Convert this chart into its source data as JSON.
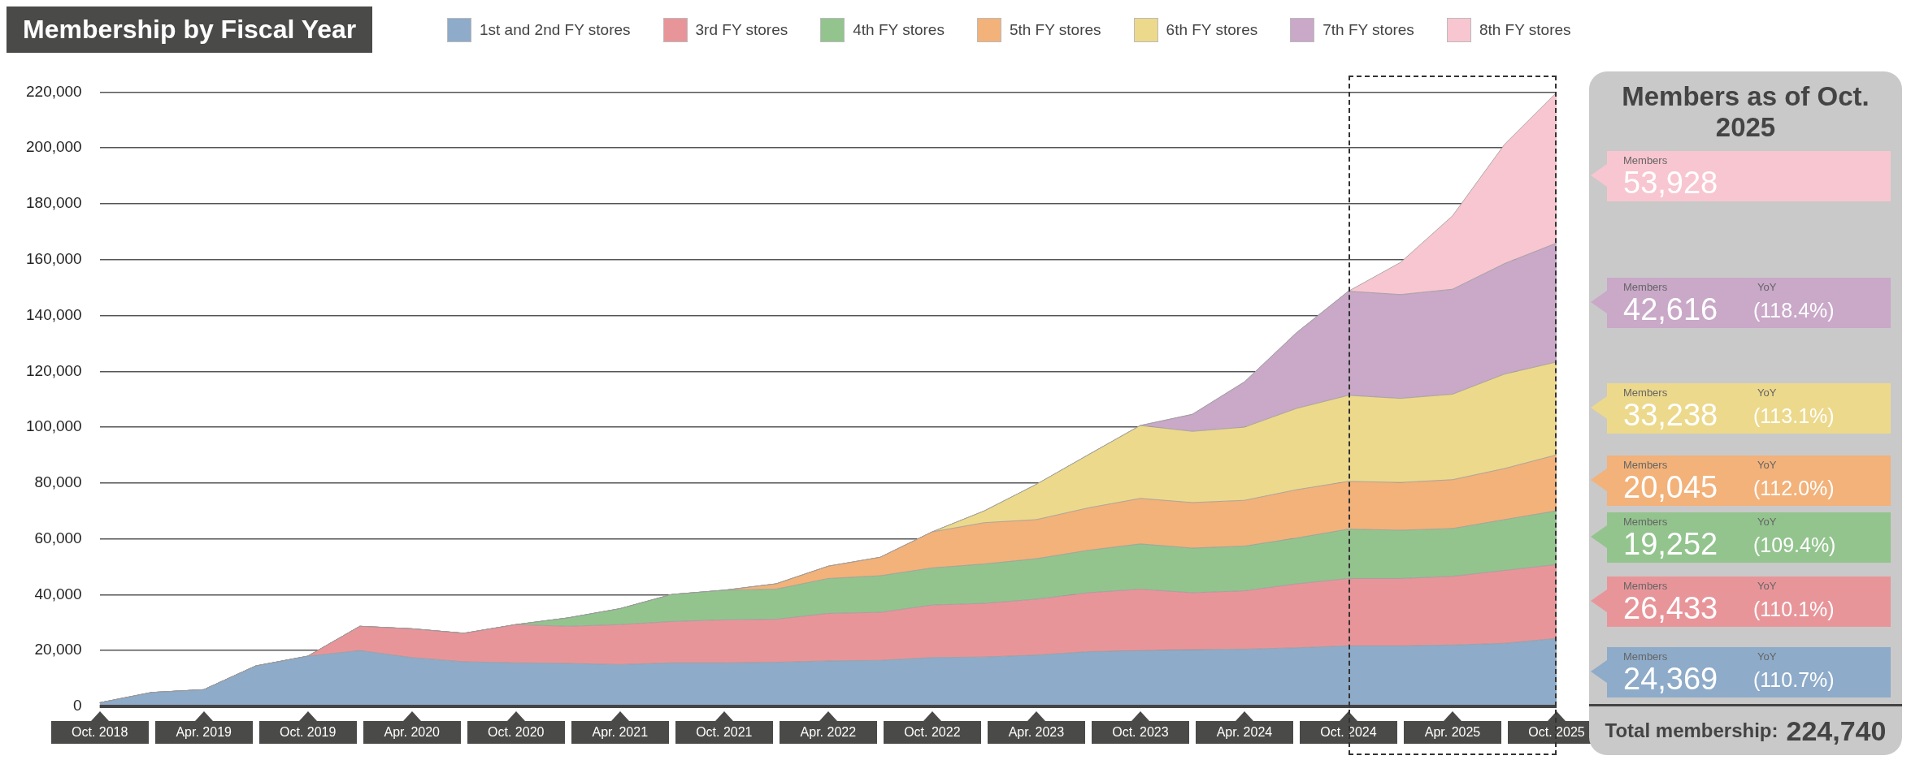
{
  "chart_data": {
    "type": "area",
    "stacked": true,
    "title": "Membership by Fiscal Year",
    "categories": [
      "Oct. 2018",
      null,
      "Apr. 2019",
      null,
      "Oct. 2019",
      null,
      "Apr. 2020",
      null,
      "Oct. 2020",
      null,
      "Apr. 2021",
      null,
      "Oct. 2021",
      null,
      "Apr. 2022",
      null,
      "Oct. 2022",
      null,
      "Apr. 2023",
      null,
      "Oct. 2023",
      null,
      "Apr. 2024",
      null,
      "Oct. 2024",
      null,
      "Apr. 2025",
      null,
      "Oct. 2025"
    ],
    "series": [
      {
        "name": "1st and 2nd FY stores",
        "color": "#8eabc9",
        "values": [
          1300,
          5000,
          6000,
          14500,
          18000,
          20000,
          17500,
          16000,
          15600,
          15400,
          15000,
          15600,
          15600,
          15800,
          16300,
          16500,
          17500,
          17700,
          18400,
          19600,
          20000,
          20300,
          20500,
          21000,
          21700,
          21700,
          22000,
          22600,
          24369
        ]
      },
      {
        "name": "3rd FY stores",
        "color": "#e8959a",
        "values": [
          0,
          0,
          0,
          0,
          0,
          8700,
          10300,
          10200,
          13700,
          13300,
          14300,
          14800,
          15400,
          15400,
          17000,
          17200,
          18800,
          19200,
          20000,
          21100,
          22000,
          20400,
          20900,
          22900,
          24100,
          24100,
          24600,
          26100,
          26433
        ]
      },
      {
        "name": "4th FY stores",
        "color": "#93c48e",
        "values": [
          0,
          0,
          0,
          0,
          0,
          0,
          0,
          0,
          0,
          3000,
          5700,
          9700,
          10600,
          10800,
          12500,
          13100,
          13300,
          14100,
          14500,
          15200,
          16200,
          16000,
          16000,
          16400,
          17700,
          17300,
          17100,
          18200,
          19252
        ]
      },
      {
        "name": "5th FY stores",
        "color": "#f2b27a",
        "values": [
          0,
          0,
          0,
          0,
          0,
          0,
          0,
          0,
          0,
          0,
          0,
          0,
          0,
          1900,
          4400,
          6600,
          12900,
          14800,
          14000,
          15200,
          16300,
          16300,
          16400,
          17300,
          17100,
          17100,
          17500,
          18300,
          20045
        ]
      },
      {
        "name": "6th FY stores",
        "color": "#ecd98c",
        "values": [
          0,
          0,
          0,
          0,
          0,
          0,
          0,
          0,
          0,
          0,
          0,
          0,
          0,
          0,
          0,
          0,
          0,
          4200,
          12600,
          19000,
          26100,
          25500,
          26200,
          29100,
          30800,
          30100,
          30600,
          33800,
          33238
        ]
      },
      {
        "name": "7th FY stores",
        "color": "#c9a8c8",
        "values": [
          0,
          0,
          0,
          0,
          0,
          0,
          0,
          0,
          0,
          0,
          0,
          0,
          0,
          0,
          0,
          0,
          0,
          0,
          0,
          0,
          0,
          6100,
          16200,
          27100,
          37300,
          37200,
          37600,
          39600,
          42616
        ]
      },
      {
        "name": "8th FY stores",
        "color": "#f8c6d0",
        "values": [
          0,
          0,
          0,
          0,
          0,
          0,
          0,
          0,
          0,
          0,
          0,
          0,
          0,
          0,
          0,
          0,
          0,
          0,
          0,
          0,
          0,
          0,
          0,
          0,
          0,
          11500,
          26300,
          42700,
          53928
        ]
      }
    ],
    "ylim": [
      0,
      220000
    ],
    "yticks": [
      {
        "value": 0,
        "label": "0"
      },
      {
        "value": 20000,
        "label": "20,000"
      },
      {
        "value": 40000,
        "label": "40,000"
      },
      {
        "value": 60000,
        "label": "60,000"
      },
      {
        "value": 80000,
        "label": "80,000"
      },
      {
        "value": 100000,
        "label": "100,000"
      },
      {
        "value": 120000,
        "label": "120,000"
      },
      {
        "value": 140000,
        "label": "140,000"
      },
      {
        "value": 160000,
        "label": "160,000"
      },
      {
        "value": 180000,
        "label": "180,000"
      },
      {
        "value": 200000,
        "label": "200,000"
      },
      {
        "value": 220000,
        "label": "220,000"
      }
    ],
    "grid": "y",
    "legend": "top",
    "annotations": [
      "Members as of Oct. 2025",
      "Members",
      "YoY",
      "24,369",
      "(110.7%)",
      "26,433",
      "(110.1%)",
      "19,252",
      "(109.4%)",
      "20,045",
      "(112.0%)",
      "33,238",
      "(113.1%)",
      "42,616",
      "(118.4%)",
      "53,928",
      "Total membership: 224,740"
    ]
  }
}
